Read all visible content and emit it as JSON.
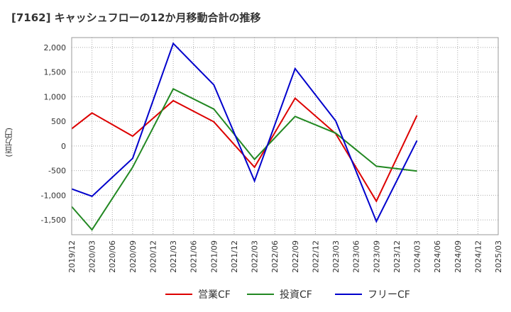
{
  "chart_data": {
    "type": "line",
    "title": "[7162]  キャッシュフローの12か月移動合計の推移",
    "ylabel": "(百万円)",
    "xlabel": "",
    "ylim": [
      -1800,
      2200
    ],
    "yticks": [
      2000,
      1500,
      1000,
      500,
      0,
      -500,
      -1000,
      -1500
    ],
    "ytick_labels": [
      "2,000",
      "1,500",
      "1,000",
      "500",
      "0",
      "-500",
      "-1,000",
      "-1,500"
    ],
    "categories": [
      "2019/12",
      "2020/03",
      "2020/06",
      "2020/09",
      "2020/12",
      "2021/03",
      "2021/06",
      "2021/09",
      "2021/12",
      "2022/03",
      "2022/06",
      "2022/09",
      "2022/12",
      "2023/03",
      "2023/06",
      "2023/09",
      "2023/12",
      "2024/03",
      "2024/06",
      "2024/09",
      "2024/12",
      "2025/03"
    ],
    "series": [
      {
        "name": "営業CF",
        "color": "#dd0000",
        "values": [
          350,
          670,
          null,
          200,
          null,
          920,
          null,
          490,
          null,
          -430,
          null,
          970,
          null,
          250,
          null,
          -1120,
          null,
          620,
          null,
          null,
          null,
          null
        ]
      },
      {
        "name": "投資CF",
        "color": "#228822",
        "values": [
          -1230,
          -1700,
          null,
          -430,
          null,
          1160,
          null,
          750,
          null,
          -270,
          null,
          600,
          null,
          260,
          null,
          -410,
          null,
          -510,
          null,
          null,
          null,
          null
        ]
      },
      {
        "name": "フリーCF",
        "color": "#0000cc",
        "values": [
          -870,
          -1020,
          null,
          -250,
          null,
          2080,
          null,
          1240,
          null,
          -710,
          null,
          1570,
          null,
          510,
          null,
          -1530,
          null,
          110,
          null,
          null,
          null,
          null
        ]
      }
    ]
  }
}
